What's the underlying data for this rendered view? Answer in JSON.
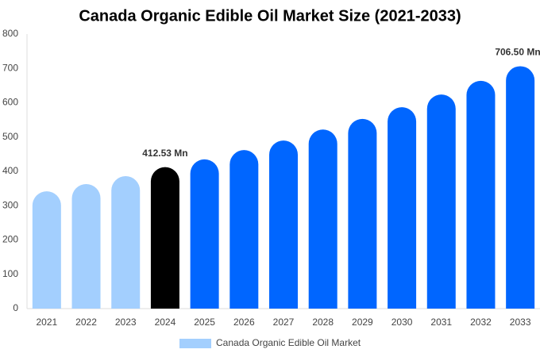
{
  "chart_data": {
    "type": "bar",
    "title": "Canada Organic Edible Oil Market Size (2021-2033)",
    "categories": [
      "2021",
      "2022",
      "2023",
      "2024",
      "2025",
      "2026",
      "2027",
      "2028",
      "2029",
      "2030",
      "2031",
      "2032",
      "2033"
    ],
    "series": [
      {
        "name": "Canada Organic Edible Oil Market",
        "color": "#a3cffe",
        "colors": [
          "#a3cffe",
          "#a3cffe",
          "#a3cffe",
          "#000000",
          "#0066ff",
          "#0066ff",
          "#0066ff",
          "#0066ff",
          "#0066ff",
          "#0066ff",
          "#0066ff",
          "#0066ff",
          "#0066ff"
        ],
        "values": [
          342,
          363,
          386,
          412.53,
          435,
          462,
          490,
          522,
          553,
          587,
          624,
          664,
          706.5
        ],
        "value_labels": [
          null,
          null,
          null,
          "412.53 Mn",
          null,
          null,
          null,
          null,
          null,
          null,
          null,
          null,
          "706.50 Mn"
        ]
      }
    ],
    "ylim": [
      0,
      800
    ],
    "yticks": [
      0,
      100,
      200,
      300,
      400,
      500,
      600,
      700,
      800
    ],
    "grid": false,
    "legend": "bottom"
  }
}
